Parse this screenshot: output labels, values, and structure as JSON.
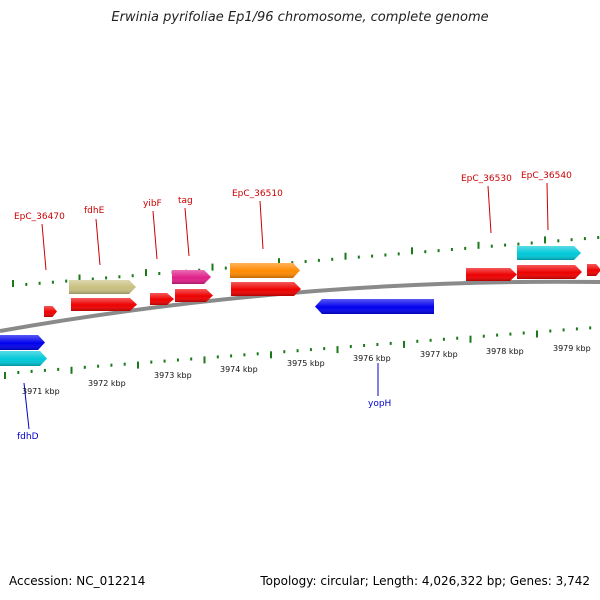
{
  "title": "Erwinia pyrifoliae Ep1/96 chromosome, complete genome",
  "footer": {
    "accession": "Accession: NC_012214",
    "summary": "Topology: circular; Length: 4,026,322 bp; Genes: 3,742"
  },
  "colors": {
    "backbone": "#8a8a8a",
    "tick": "#1a7a1a",
    "label_red": "#cc0000",
    "label_blue": "#0000cc"
  },
  "ticks": [
    {
      "label": "3971 kbp"
    },
    {
      "label": "3972 kbp"
    },
    {
      "label": "3973 kbp"
    },
    {
      "label": "3974 kbp"
    },
    {
      "label": "3975 kbp"
    },
    {
      "label": "3976 kbp"
    },
    {
      "label": "3977 kbp"
    },
    {
      "label": "3978 kbp"
    },
    {
      "label": "3979 kbp"
    }
  ],
  "genes": [
    {
      "id": "g1",
      "color": "#ee0000"
    },
    {
      "id": "g2",
      "color": "#ee0000"
    },
    {
      "id": "g3",
      "color": "#c8c080"
    },
    {
      "id": "g4",
      "color": "#ee0000"
    },
    {
      "id": "g5",
      "color": "#ee0000"
    },
    {
      "id": "g6",
      "color": "#e0208a"
    },
    {
      "id": "g7",
      "color": "#ee0000"
    },
    {
      "id": "g8",
      "color": "#ff8a00"
    },
    {
      "id": "g9",
      "color": "#0000ee"
    },
    {
      "id": "g10",
      "color": "#ee0000"
    },
    {
      "id": "g11",
      "color": "#ee0000"
    },
    {
      "id": "g12",
      "color": "#00c8d8"
    },
    {
      "id": "g13",
      "color": "#ee0000"
    },
    {
      "id": "g14",
      "color": "#0000ee"
    },
    {
      "id": "g15",
      "color": "#00c8d8"
    }
  ],
  "labels": [
    {
      "text": "EpC_36470",
      "color": "#cc0000"
    },
    {
      "text": "fdhE",
      "color": "#cc0000"
    },
    {
      "text": "yibF",
      "color": "#cc0000"
    },
    {
      "text": "tag",
      "color": "#cc0000"
    },
    {
      "text": "EpC_36510",
      "color": "#cc0000"
    },
    {
      "text": "EpC_36530",
      "color": "#cc0000"
    },
    {
      "text": "EpC_36540",
      "color": "#cc0000"
    },
    {
      "text": "yopH",
      "color": "#0000cc"
    },
    {
      "text": "fdhD",
      "color": "#0000cc"
    }
  ]
}
